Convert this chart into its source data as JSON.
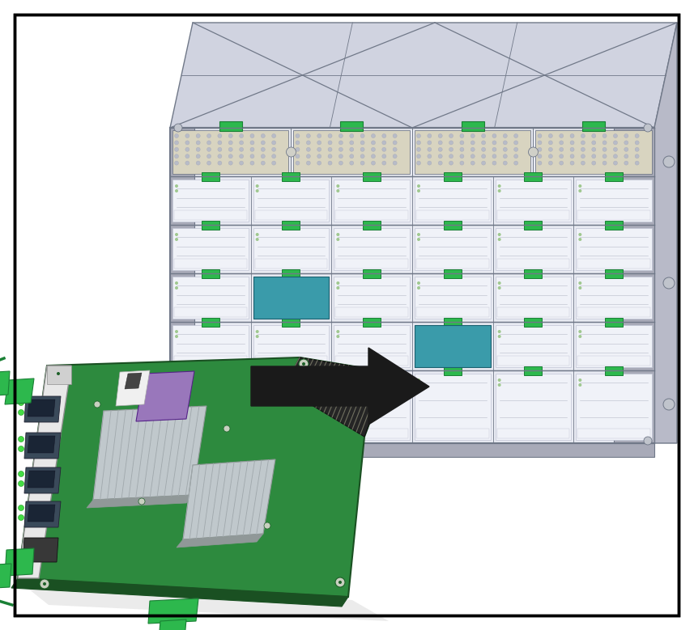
{
  "background_color": "#ffffff",
  "border_color": "#000000",
  "border_linewidth": 2.5,
  "figure_width": 8.57,
  "figure_height": 7.79,
  "dpi": 100,
  "server": {
    "body_color": "#cdd0dc",
    "body_light": "#dde0ea",
    "body_dark": "#a8aab8",
    "body_side": "#b8bac8",
    "top_color": "#d0d3e0",
    "slot_bg": "#e8eaf2",
    "slot_fill": "#f0f2f8",
    "slot_dark": "#c0c4d4",
    "tab_green": "#2db84d",
    "tab_green_dark": "#1a8035",
    "teal": "#3a9baa",
    "vent_color": "#b8bcc8",
    "screw_color": "#c0c4cc",
    "outline": "#707888",
    "fan_beige": "#d8d4c0",
    "fan_beige_dark": "#b8b4a0"
  },
  "board": {
    "pcb_green": "#2d8a3e",
    "pcb_dark": "#1d6028",
    "pcb_edge": "#1a5022",
    "pcb_bot": "#1a5022",
    "bracket_light": "#e8e8e8",
    "bracket_mid": "#d0d0d0",
    "bracket_dark": "#b0b0b0",
    "heatsink_top": "#c0c8cc",
    "heatsink_side": "#909898",
    "heatsink_fin": "#a0a8ac",
    "purple": "#9977bb",
    "white_comp": "#f0f0f0",
    "connector_dark": "#252525",
    "connector_fin": "#707060",
    "port_dark": "#3a4a5a",
    "green_latch": "#2db84d",
    "green_latch_dark": "#1a8035",
    "screw_head": "#c8d0c0"
  },
  "arrow_color": "#1a1a1a"
}
